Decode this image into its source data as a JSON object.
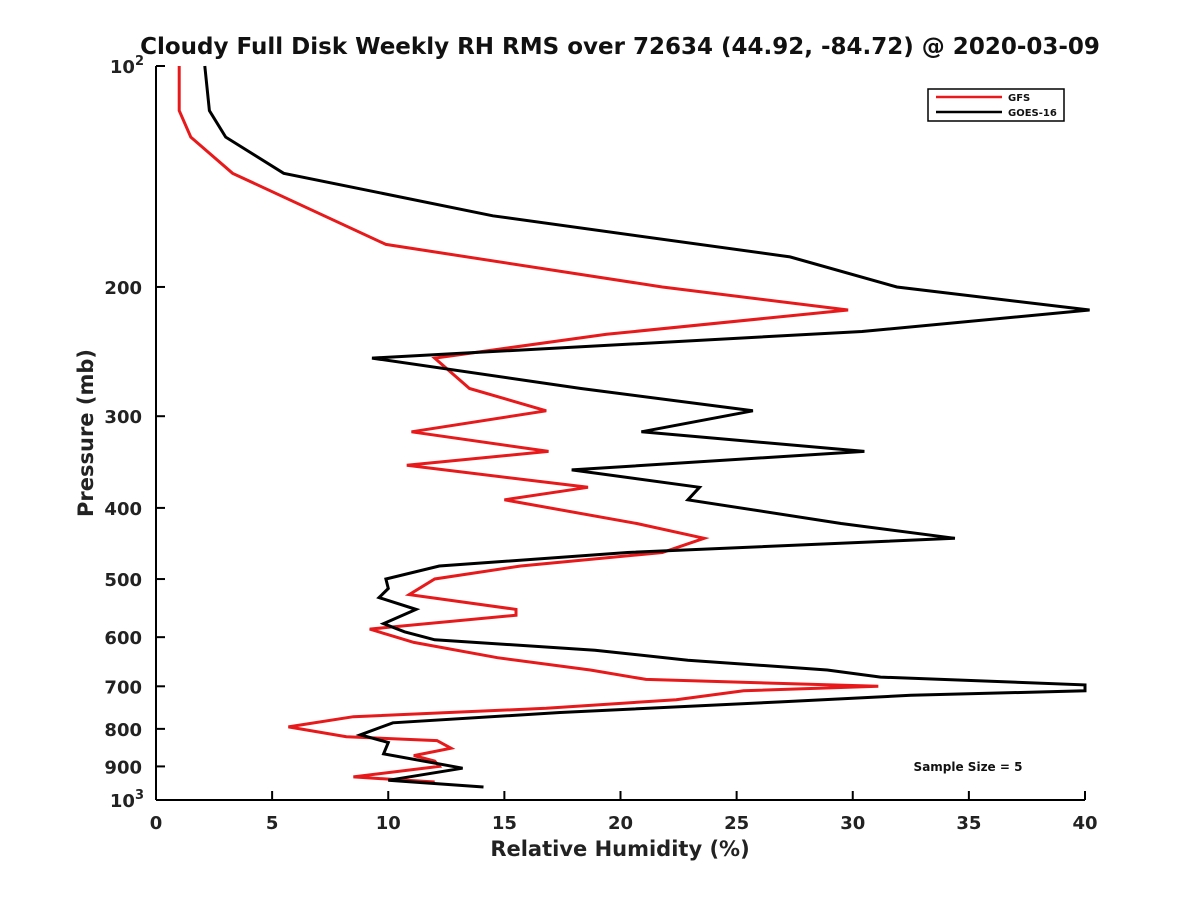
{
  "chart_data": {
    "type": "line",
    "title": "Cloudy Full Disk Weekly RH RMS over 72634 (44.92, -84.72) @ 2020-03-09",
    "xlabel": "Relative Humidity (%)",
    "ylabel": "Pressure (mb)",
    "xlim": [
      0,
      40
    ],
    "ylim": [
      100,
      1000
    ],
    "y_scale": "log",
    "y_reversed": true,
    "grid": false,
    "legend_position": "top-right",
    "x_ticks": [
      "0",
      "5",
      "10",
      "15",
      "20",
      "25",
      "30",
      "35",
      "40"
    ],
    "y_ticks": [
      {
        "value": 100,
        "base": "10",
        "exp": "2"
      },
      {
        "value": 200,
        "label": "200"
      },
      {
        "value": 300,
        "label": "300"
      },
      {
        "value": 400,
        "label": "400"
      },
      {
        "value": 500,
        "label": "500"
      },
      {
        "value": 600,
        "label": "600"
      },
      {
        "value": 700,
        "label": "700"
      },
      {
        "value": 800,
        "label": "800"
      },
      {
        "value": 900,
        "label": "900"
      },
      {
        "value": 1000,
        "base": "10",
        "exp": "3"
      }
    ],
    "series": [
      {
        "name": "GFS",
        "color": "#e8191b",
        "points": [
          [
            1.0,
            100
          ],
          [
            1.0,
            115
          ],
          [
            1.5,
            125
          ],
          [
            3.3,
            140
          ],
          [
            9.9,
            175
          ],
          [
            21.8,
            200
          ],
          [
            29.8,
            215
          ],
          [
            19.4,
            232
          ],
          [
            12.0,
            250
          ],
          [
            13.5,
            275
          ],
          [
            16.8,
            295
          ],
          [
            11.0,
            315
          ],
          [
            16.9,
            335
          ],
          [
            10.8,
            350
          ],
          [
            18.6,
            375
          ],
          [
            15.0,
            390
          ],
          [
            20.7,
            420
          ],
          [
            23.6,
            440
          ],
          [
            21.8,
            460
          ],
          [
            15.7,
            480
          ],
          [
            12.0,
            500
          ],
          [
            10.9,
            525
          ],
          [
            15.5,
            550
          ],
          [
            15.5,
            560
          ],
          [
            9.2,
            585
          ],
          [
            11.1,
            610
          ],
          [
            14.7,
            640
          ],
          [
            18.7,
            665
          ],
          [
            21.1,
            685
          ],
          [
            31.1,
            700
          ],
          [
            25.3,
            710
          ],
          [
            22.4,
            730
          ],
          [
            16.8,
            750
          ],
          [
            8.5,
            770
          ],
          [
            5.7,
            795
          ],
          [
            8.2,
            820
          ],
          [
            12.1,
            830
          ],
          [
            12.7,
            850
          ],
          [
            11.1,
            870
          ],
          [
            12.0,
            885
          ],
          [
            12.2,
            900
          ],
          [
            8.5,
            930
          ],
          [
            12.0,
            945
          ]
        ]
      },
      {
        "name": "GOES-16",
        "color": "#000000",
        "points": [
          [
            2.1,
            100
          ],
          [
            2.3,
            115
          ],
          [
            3.0,
            125
          ],
          [
            5.5,
            140
          ],
          [
            14.5,
            160
          ],
          [
            27.3,
            182
          ],
          [
            31.9,
            200
          ],
          [
            40.2,
            215
          ],
          [
            30.4,
            230
          ],
          [
            9.3,
            250
          ],
          [
            18.3,
            275
          ],
          [
            25.7,
            295
          ],
          [
            20.9,
            315
          ],
          [
            30.5,
            335
          ],
          [
            17.9,
            355
          ],
          [
            23.4,
            375
          ],
          [
            22.9,
            390
          ],
          [
            29.5,
            420
          ],
          [
            34.4,
            440
          ],
          [
            20.3,
            460
          ],
          [
            12.2,
            480
          ],
          [
            9.9,
            500
          ],
          [
            10.0,
            515
          ],
          [
            9.6,
            530
          ],
          [
            11.2,
            550
          ],
          [
            9.8,
            575
          ],
          [
            10.7,
            590
          ],
          [
            12.0,
            605
          ],
          [
            18.9,
            625
          ],
          [
            22.9,
            645
          ],
          [
            28.9,
            665
          ],
          [
            31.2,
            680
          ],
          [
            40.0,
            697
          ],
          [
            40.0,
            710
          ],
          [
            32.5,
            720
          ],
          [
            26.9,
            735
          ],
          [
            17.4,
            760
          ],
          [
            10.2,
            785
          ],
          [
            8.8,
            815
          ],
          [
            10.0,
            835
          ],
          [
            9.8,
            865
          ],
          [
            13.2,
            905
          ],
          [
            10.0,
            940
          ],
          [
            14.1,
            960
          ]
        ]
      }
    ],
    "annotation": "Sample Size = 5"
  }
}
